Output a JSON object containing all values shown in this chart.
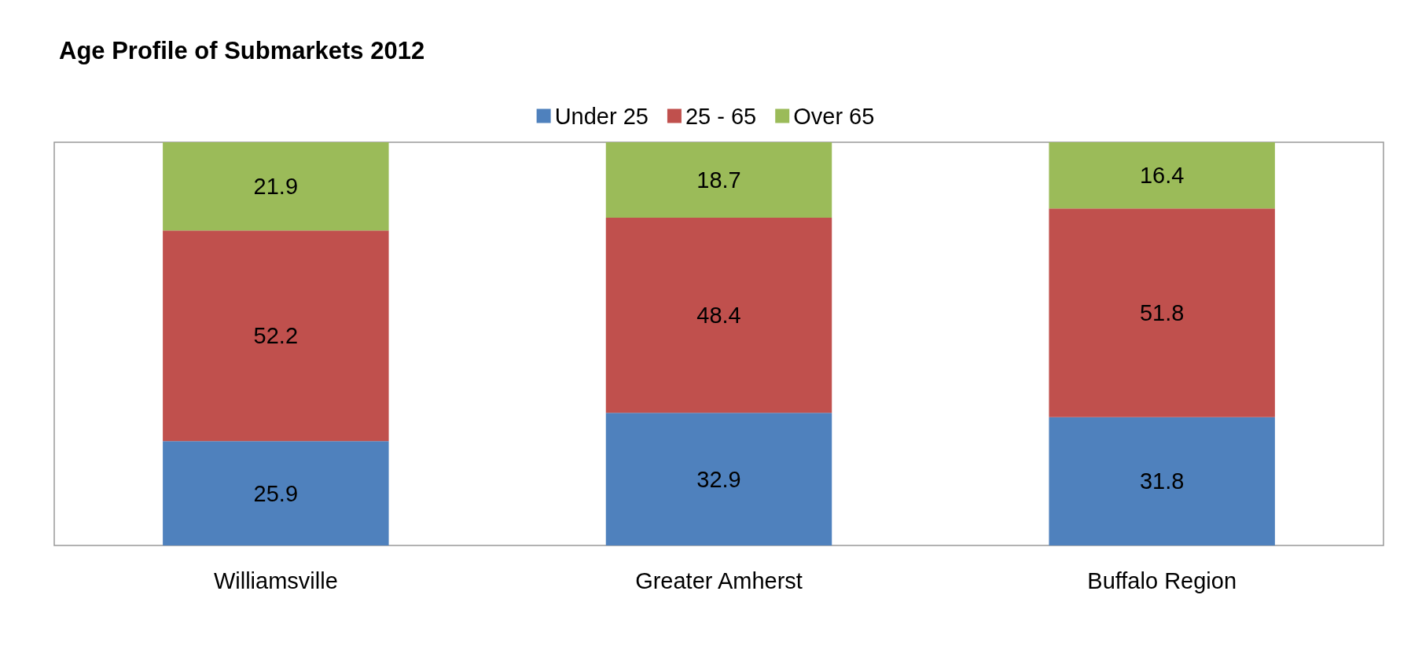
{
  "chart_data": {
    "type": "bar",
    "title": "Age Profile of Submarkets 2012",
    "categories": [
      "Williamsville",
      "Greater Amherst",
      "Buffalo Region"
    ],
    "series": [
      {
        "name": "Under 25",
        "color": "#4f81bd",
        "values": [
          25.9,
          32.9,
          31.8
        ]
      },
      {
        "name": "25 - 65",
        "color": "#c0504d",
        "values": [
          52.2,
          48.4,
          51.8
        ]
      },
      {
        "name": "Over 65",
        "color": "#9bbb59",
        "values": [
          21.9,
          18.7,
          16.4
        ]
      }
    ],
    "stacked": true,
    "data_labels": true,
    "ylim": [
      0,
      100
    ],
    "tick_labels": "x",
    "grid": false,
    "legend": "top"
  }
}
